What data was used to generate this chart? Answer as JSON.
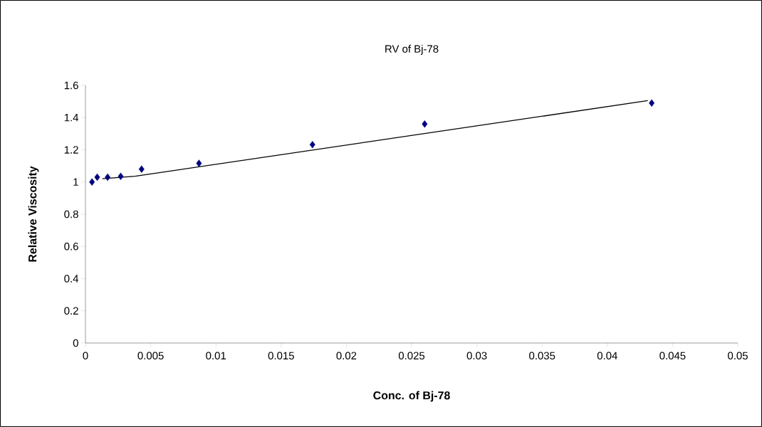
{
  "chart_data": {
    "type": "scatter",
    "title": "RV of Bj-78",
    "xlabel": "Conc. of Bj-78",
    "ylabel": "Relative Viscosity",
    "xlim": [
      0,
      0.05
    ],
    "xticks": [
      0,
      0.005,
      0.01,
      0.015,
      0.02,
      0.025,
      0.03,
      0.035,
      0.04,
      0.045,
      0.05
    ],
    "ylim": [
      0,
      1.6
    ],
    "yticks": [
      0,
      0.2,
      0.4,
      0.6,
      0.8,
      1,
      1.2,
      1.4,
      1.6
    ],
    "series": [
      {
        "color": "#000080",
        "marker": "diamond",
        "x": [
          0.0005,
          0.0009,
          0.0017,
          0.0027,
          0.0043,
          0.0087,
          0.0174,
          0.026,
          0.0434
        ],
        "values": [
          1.0,
          1.03,
          1.03,
          1.035,
          1.08,
          1.116,
          1.232,
          1.36,
          1.49
        ]
      },
      {
        "type": "line",
        "color": "#000000",
        "marker": "none",
        "line_style": "solid",
        "x": [
          0.0013,
          0.0038,
          0.0431
        ],
        "values": [
          1.02,
          1.036,
          1.505
        ]
      }
    ]
  }
}
